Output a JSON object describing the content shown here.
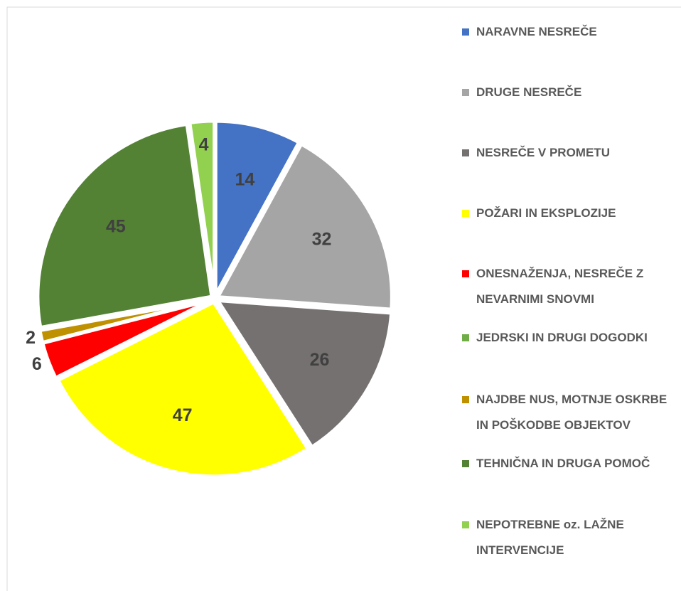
{
  "chart_data": {
    "type": "pie",
    "categories": [
      "NARAVNE NESREČE",
      "DRUGE NESREČE",
      "NESREČE V PROMETU",
      "POŽARI IN EKSPLOZIJE",
      "ONESNAŽENJA, NESREČE Z NEVARNIMI SNOVMI",
      "JEDRSKI IN DRUGI DOGODKI",
      "NAJDBE NUS, MOTNJE OSKRBE IN POŠKODBE OBJEKTOV",
      "TEHNIČNA IN DRUGA POMOČ",
      "NEPOTREBNE oz. LAŽNE INTERVENCIJE"
    ],
    "values": [
      14,
      32,
      26,
      47,
      6,
      0,
      2,
      45,
      4
    ],
    "colors": [
      "#4472c4",
      "#a5a5a5",
      "#767171",
      "#ffff00",
      "#ff0000",
      "#70ad47",
      "#bf9000",
      "#548235",
      "#92d050"
    ],
    "legend": "right"
  }
}
